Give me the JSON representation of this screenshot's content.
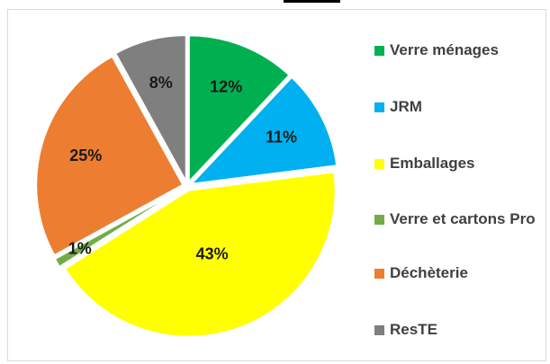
{
  "chart_data": {
    "type": "pie",
    "categories": [
      "Verre ménages",
      "JRM",
      "Emballages",
      "Verre et cartons Pro",
      "Déchèterie",
      "ResTE"
    ],
    "values": [
      12,
      11,
      43,
      1,
      25,
      8
    ],
    "value_labels": [
      "12%",
      "11%",
      "43%",
      "1%",
      "25%",
      "8%"
    ],
    "colors": [
      "#00b050",
      "#00b0f0",
      "#ffff00",
      "#70ad47",
      "#ed7d31",
      "#7f7f7f"
    ],
    "legend": "right"
  }
}
